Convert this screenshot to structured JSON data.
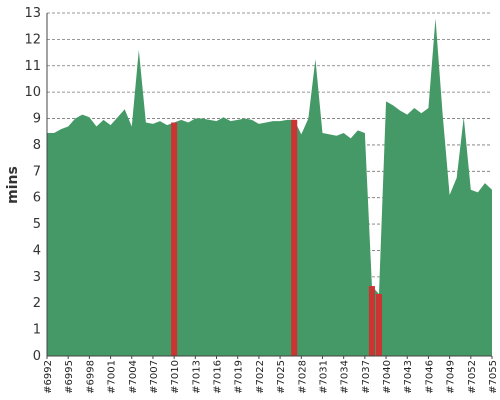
{
  "chart_data": {
    "type": "area",
    "title": "",
    "xlabel": "",
    "ylabel": "mins",
    "ylim": [
      0,
      13
    ],
    "y_ticks": [
      0,
      1,
      2,
      3,
      4,
      5,
      6,
      7,
      8,
      9,
      10,
      11,
      12,
      13
    ],
    "grid": true,
    "x_range": [
      6992,
      7055
    ],
    "x_tick_labels": [
      "#6992",
      "#6995",
      "#6998",
      "#7001",
      "#7004",
      "#7007",
      "#7010",
      "#7013",
      "#7016",
      "#7019",
      "#7022",
      "#7025",
      "#7028",
      "#7031",
      "#7034",
      "#7037",
      "#7040",
      "#7043",
      "#7046",
      "#7049",
      "#7052",
      "#7055"
    ],
    "series": [
      {
        "color": "#449966",
        "x": [
          6992,
          6993,
          6994,
          6995,
          6996,
          6997,
          6998,
          6999,
          7000,
          7001,
          7002,
          7003,
          7004,
          7005,
          7006,
          7007,
          7008,
          7009,
          7010,
          7011,
          7012,
          7013,
          7014,
          7015,
          7016,
          7017,
          7018,
          7019,
          7020,
          7021,
          7022,
          7023,
          7024,
          7025,
          7026,
          7027,
          7028,
          7029,
          7030,
          7031,
          7032,
          7033,
          7034,
          7035,
          7036,
          7037,
          7038,
          7039,
          7040,
          7041,
          7042,
          7043,
          7044,
          7045,
          7046,
          7047,
          7048,
          7049,
          7050,
          7051,
          7052,
          7053,
          7054,
          7055
        ],
        "values": [
          8.45,
          8.45,
          8.6,
          8.7,
          9.0,
          9.15,
          9.05,
          8.7,
          8.95,
          8.75,
          9.05,
          9.35,
          8.7,
          11.6,
          8.85,
          8.8,
          8.9,
          8.75,
          8.85,
          8.95,
          8.85,
          9.0,
          9.0,
          8.95,
          8.9,
          9.05,
          8.9,
          8.95,
          9.0,
          8.95,
          8.8,
          8.85,
          8.9,
          8.9,
          8.95,
          8.95,
          8.4,
          9.0,
          11.25,
          8.45,
          8.4,
          8.35,
          8.45,
          8.25,
          8.55,
          8.45,
          2.65,
          2.35,
          9.65,
          9.5,
          9.3,
          9.15,
          9.4,
          9.2,
          9.4,
          12.8,
          9.2,
          6.1,
          6.75,
          9.05,
          6.3,
          6.2,
          6.55,
          6.3
        ]
      }
    ],
    "failed_builds": [
      {
        "x": 7010,
        "color": "#cc3333"
      },
      {
        "x": 7027,
        "color": "#cc3333"
      },
      {
        "x": 7038,
        "color": "#cc3333"
      },
      {
        "x": 7039,
        "color": "#cc3333"
      }
    ]
  }
}
